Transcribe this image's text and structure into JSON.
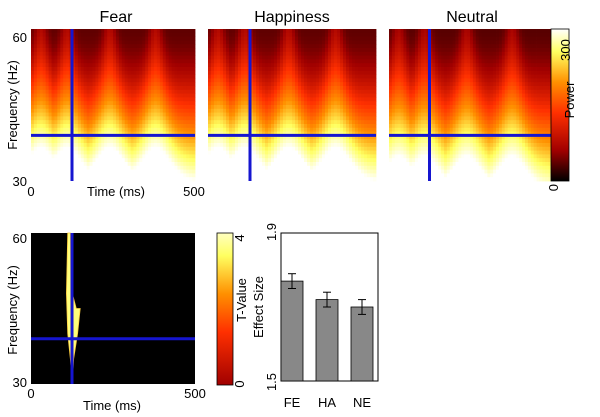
{
  "chart_data": [
    {
      "type": "heatmap",
      "panels": [
        {
          "title": "Fear",
          "hot_peaks_ms": [
            30,
            110,
            240,
            380
          ]
        },
        {
          "title": "Happiness",
          "hot_peaks_ms": [
            30,
            110,
            240,
            380
          ]
        },
        {
          "title": "Neutral",
          "hot_peaks_ms": [
            30,
            110,
            240,
            380
          ]
        }
      ],
      "xlabel": "Time (ms)",
      "ylabel": "Frequency (Hz)",
      "xlim": [
        0,
        500
      ],
      "ylim": [
        30,
        60
      ],
      "x_ticks": [
        "0",
        "500"
      ],
      "y_ticks": [
        "30",
        "60"
      ],
      "marker_time_ms": 125,
      "marker_freq_hz": 39,
      "marker_color": "#1515d0",
      "colorbar": {
        "label": "Power",
        "range": [
          0,
          300
        ],
        "ticks": [
          "0",
          "300"
        ]
      },
      "colormap": [
        "#000000",
        "#a00000",
        "#ff3000",
        "#ff9000",
        "#ffff60",
        "#ffffff"
      ]
    },
    {
      "type": "heatmap",
      "xlabel": "Time (ms)",
      "ylabel": "Frequency (Hz)",
      "xlim": [
        0,
        500
      ],
      "ylim": [
        30,
        60
      ],
      "x_ticks": [
        "0",
        "500"
      ],
      "y_ticks": [
        "30",
        "60"
      ],
      "marker_time_ms": 125,
      "marker_freq_hz": 39,
      "cluster_time_ms": [
        90,
        170
      ],
      "cluster_freq_hz": [
        30,
        60
      ],
      "colorbar": {
        "label": "T-Value",
        "range": [
          0,
          4
        ],
        "ticks": [
          "0",
          "4"
        ]
      }
    },
    {
      "type": "bar",
      "categories": [
        "FE",
        "HA",
        "NE"
      ],
      "values": [
        1.77,
        1.72,
        1.7
      ],
      "errors": [
        0.02,
        0.02,
        0.02
      ],
      "ylabel": "Effect Size",
      "ylim": [
        1.5,
        1.9
      ],
      "y_ticks": [
        "1.5",
        "1.9"
      ],
      "bar_color": "#888888"
    }
  ]
}
